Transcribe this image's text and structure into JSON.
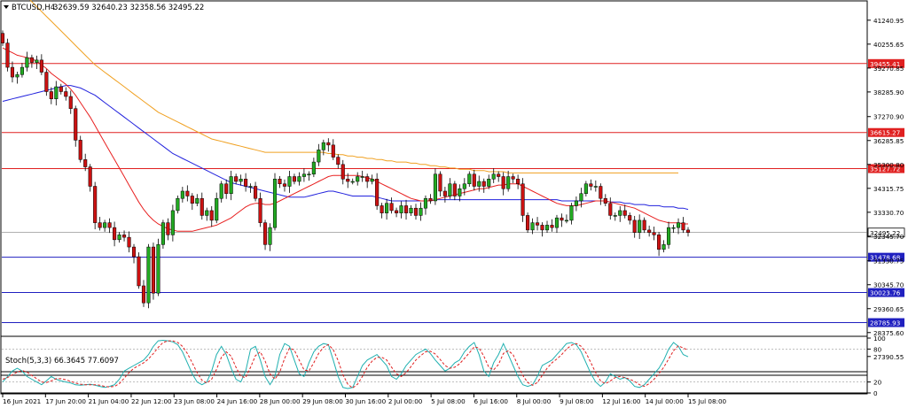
{
  "colors": {
    "bull": "#22aa22",
    "bear": "#cc1111",
    "ma_fast": "#e82020",
    "ma_mid": "#2222dd",
    "ma_slow": "#f0a020",
    "res_line": "#e02020",
    "sup_line": "#2020c0",
    "stoch_main": "#20b0b0",
    "stoch_signal": "#e02020",
    "grid": "#cccccc",
    "axis": "#000000",
    "current": "#606060"
  },
  "chart_data": [
    {
      "type": "candlestick",
      "title": "BTCUSD,H4",
      "ohlc_header": "32639.59 32640.23 32358.56 32495.22",
      "ylim": [
        26800,
        42000
      ],
      "y_ticks": [
        "41240.95",
        "40255.65",
        "39270.85",
        "38285.90",
        "37270.90",
        "36285.85",
        "35300.80",
        "34315.75",
        "33330.70",
        "32345.70",
        "31330.75",
        "30345.70",
        "29360.65",
        "28375.60",
        "27390.55"
      ],
      "x_labels": [
        "16 Jun 2021",
        "17 Jun 20:00",
        "21 Jun 04:00",
        "22 Jun 12:00",
        "23 Jun 08:00",
        "24 Jun 16:00",
        "28 Jun 00:00",
        "29 Jun 08:00",
        "30 Jun 16:00",
        "2 Jul 00:00",
        "5 Jul 08:00",
        "6 Jul 16:00",
        "8 Jul 00:00",
        "9 Jul 08:00",
        "12 Jul 16:00",
        "14 Jul 00:00",
        "15 Jul 08:00"
      ],
      "horizontal_levels": [
        {
          "label": "39455.41",
          "value": 39455.41,
          "kind": "resistance"
        },
        {
          "label": "36615.27",
          "value": 36615.27,
          "kind": "resistance"
        },
        {
          "label": "35127.72",
          "value": 35127.72,
          "kind": "resistance"
        },
        {
          "label": "31478.68",
          "value": 31478.68,
          "kind": "support"
        },
        {
          "label": "30023.76",
          "value": 30023.76,
          "kind": "support"
        },
        {
          "label": "28785.93",
          "value": 28785.93,
          "kind": "support"
        }
      ],
      "current_price": {
        "label": "32495.22",
        "value": 32495.22
      },
      "close": [
        40300,
        39300,
        38900,
        39000,
        39300,
        39700,
        39500,
        39600,
        39100,
        38300,
        38000,
        38500,
        38300,
        38100,
        37600,
        36300,
        35500,
        35200,
        34400,
        32900,
        32700,
        32900,
        32700,
        32200,
        32400,
        32300,
        31900,
        31500,
        30300,
        29600,
        31900,
        30000,
        32000,
        32900,
        32400,
        33400,
        33900,
        34200,
        34000,
        33700,
        33900,
        33200,
        33400,
        33000,
        33900,
        34500,
        34100,
        34800,
        34600,
        34700,
        34400,
        34400,
        33900,
        32900,
        32000,
        32700,
        34700,
        34500,
        34400,
        34800,
        34600,
        34800,
        34900,
        34900,
        35400,
        35900,
        36200,
        36100,
        35600,
        35300,
        34700,
        34600,
        34600,
        34800,
        34800,
        34600,
        34700,
        33600,
        33300,
        33700,
        33400,
        33300,
        33600,
        33300,
        33500,
        33200,
        33500,
        33900,
        33800,
        34900,
        34200,
        34000,
        34500,
        34000,
        34300,
        34500,
        34900,
        34400,
        34600,
        34400,
        34700,
        34900,
        34800,
        34300,
        34800,
        34700,
        34500,
        33200,
        32600,
        32900,
        32800,
        32600,
        32800,
        32700,
        33100,
        33000,
        33000,
        33600,
        33800,
        34100,
        34500,
        34400,
        34400,
        33900,
        33700,
        33200,
        33200,
        33400,
        33200,
        33000,
        32500,
        33000,
        32600,
        32500,
        32400,
        31800,
        32000,
        32700,
        32700,
        32900,
        32600,
        32500
      ],
      "ma_fast": [
        40100,
        40000,
        39900,
        39800,
        39750,
        39700,
        39650,
        39550,
        39400,
        39250,
        39050,
        38900,
        38750,
        38600,
        38400,
        38150,
        37850,
        37550,
        37250,
        36900,
        36550,
        36200,
        35850,
        35500,
        35150,
        34800,
        34450,
        34100,
        33750,
        33450,
        33200,
        33000,
        32850,
        32750,
        32650,
        32600,
        32550,
        32550,
        32550,
        32550,
        32600,
        32650,
        32700,
        32750,
        32800,
        32900,
        33000,
        33100,
        33250,
        33400,
        33550,
        33650,
        33700,
        33700,
        33650,
        33650,
        33700,
        33800,
        33900,
        34000,
        34100,
        34200,
        34300,
        34400,
        34500,
        34600,
        34700,
        34800,
        34850,
        34850,
        34850,
        34850,
        34850,
        34850,
        34800,
        34750,
        34700,
        34600,
        34500,
        34400,
        34300,
        34200,
        34100,
        34000,
        33900,
        33850,
        33800,
        33800,
        33800,
        33850,
        33900,
        33950,
        34000,
        34050,
        34100,
        34150,
        34200,
        34250,
        34300,
        34300,
        34350,
        34400,
        34450,
        34450,
        34500,
        34500,
        34500,
        34400,
        34300,
        34200,
        34100,
        34000,
        33900,
        33800,
        33700,
        33650,
        33600,
        33600,
        33600,
        33650,
        33700,
        33750,
        33800,
        33800,
        33800,
        33750,
        33700,
        33650,
        33600,
        33550,
        33500,
        33400,
        33300,
        33200,
        33100,
        33000,
        32950,
        32900,
        32900,
        32900,
        32850,
        32850
      ],
      "ma_mid": [
        37900,
        37950,
        38000,
        38050,
        38100,
        38150,
        38200,
        38250,
        38300,
        38350,
        38400,
        38450,
        38500,
        38550,
        38550,
        38500,
        38450,
        38350,
        38250,
        38150,
        38000,
        37850,
        37700,
        37550,
        37400,
        37250,
        37100,
        36950,
        36800,
        36650,
        36500,
        36350,
        36200,
        36050,
        35900,
        35750,
        35650,
        35550,
        35450,
        35350,
        35250,
        35150,
        35050,
        34950,
        34850,
        34750,
        34650,
        34550,
        34500,
        34450,
        34400,
        34350,
        34300,
        34250,
        34200,
        34150,
        34100,
        34050,
        34000,
        33950,
        33950,
        33950,
        33950,
        34000,
        34050,
        34100,
        34150,
        34200,
        34200,
        34150,
        34100,
        34050,
        34000,
        34000,
        34000,
        34000,
        34000,
        33950,
        33900,
        33850,
        33800,
        33800,
        33800,
        33800,
        33800,
        33800,
        33800,
        33800,
        33800,
        33850,
        33850,
        33850,
        33850,
        33850,
        33850,
        33850,
        33850,
        33850,
        33850,
        33850,
        33850,
        33850,
        33850,
        33850,
        33850,
        33850,
        33850,
        33850,
        33850,
        33850,
        33850,
        33850,
        33850,
        33850,
        33850,
        33800,
        33800,
        33800,
        33800,
        33800,
        33800,
        33800,
        33800,
        33800,
        33800,
        33750,
        33750,
        33750,
        33700,
        33700,
        33650,
        33650,
        33650,
        33600,
        33600,
        33600,
        33550,
        33550,
        33550,
        33500,
        33500,
        33450
      ],
      "ma_slow": [
        43200,
        43000,
        42800,
        42600,
        42400,
        42200,
        42000,
        41800,
        41600,
        41400,
        41200,
        41000,
        40800,
        40600,
        40400,
        40200,
        40000,
        39800,
        39600,
        39400,
        39250,
        39100,
        38950,
        38800,
        38650,
        38500,
        38350,
        38200,
        38050,
        37900,
        37750,
        37600,
        37450,
        37350,
        37250,
        37150,
        37050,
        36950,
        36850,
        36750,
        36650,
        36550,
        36450,
        36350,
        36300,
        36250,
        36200,
        36150,
        36100,
        36050,
        36000,
        35950,
        35900,
        35850,
        35800,
        35800,
        35800,
        35800,
        35800,
        35800,
        35800,
        35800,
        35800,
        35800,
        35800,
        35800,
        35800,
        35750,
        35750,
        35700,
        35700,
        35650,
        35650,
        35600,
        35600,
        35550,
        35550,
        35500,
        35500,
        35450,
        35450,
        35400,
        35400,
        35400,
        35350,
        35350,
        35300,
        35300,
        35250,
        35250,
        35200,
        35200,
        35150,
        35150,
        35100,
        35100,
        35100,
        35050,
        35050,
        35050,
        35000,
        35000,
        35000,
        35000,
        34950,
        34950,
        34950,
        34950,
        34950,
        34950,
        34950,
        34950,
        34950,
        34950,
        34950,
        34950,
        34950,
        34950,
        34950,
        34950,
        34950,
        34950,
        34950,
        34950,
        34950,
        34950,
        34950,
        34950,
        34950,
        34950,
        34950,
        34950,
        34950,
        34950,
        34950,
        34950,
        34950,
        34950,
        34950,
        34950
      ]
    },
    {
      "type": "line",
      "title": "Stoch(5,3,3) 66.3645 77.6097",
      "ylim": [
        0,
        100
      ],
      "y_ticks": [
        "100",
        "80",
        "20",
        "0"
      ],
      "levels": [
        80,
        20
      ],
      "series": [
        {
          "name": "main",
          "values": [
            20,
            30,
            40,
            45,
            40,
            30,
            25,
            20,
            15,
            22,
            30,
            25,
            22,
            20,
            18,
            15,
            14,
            15,
            16,
            14,
            12,
            10,
            12,
            15,
            25,
            40,
            45,
            50,
            55,
            60,
            70,
            85,
            95,
            96,
            95,
            93,
            88,
            75,
            55,
            35,
            20,
            15,
            20,
            40,
            70,
            85,
            70,
            45,
            25,
            20,
            40,
            80,
            85,
            60,
            30,
            15,
            30,
            70,
            90,
            85,
            60,
            35,
            30,
            55,
            75,
            85,
            90,
            88,
            60,
            30,
            10,
            8,
            10,
            30,
            50,
            60,
            65,
            70,
            60,
            50,
            30,
            25,
            35,
            50,
            60,
            70,
            75,
            80,
            72,
            60,
            50,
            40,
            45,
            55,
            60,
            75,
            85,
            92,
            70,
            40,
            30,
            55,
            70,
            90,
            70,
            50,
            30,
            15,
            12,
            15,
            30,
            50,
            55,
            60,
            70,
            80,
            90,
            92,
            88,
            75,
            55,
            35,
            20,
            12,
            20,
            35,
            30,
            25,
            28,
            22,
            12,
            10,
            15,
            25,
            35,
            45,
            60,
            80,
            92,
            85,
            70,
            66
          ]
        },
        {
          "name": "signal",
          "values": [
            25,
            28,
            33,
            38,
            41,
            38,
            32,
            26,
            20,
            19,
            22,
            26,
            26,
            24,
            21,
            18,
            16,
            15,
            15,
            15,
            14,
            12,
            11,
            12,
            17,
            27,
            37,
            45,
            50,
            55,
            62,
            72,
            83,
            92,
            95,
            95,
            92,
            85,
            72,
            55,
            37,
            23,
            18,
            25,
            43,
            65,
            75,
            67,
            47,
            30,
            28,
            47,
            68,
            75,
            58,
            35,
            25,
            38,
            63,
            82,
            78,
            60,
            42,
            40,
            55,
            72,
            83,
            88,
            79,
            59,
            33,
            16,
            9,
            16,
            30,
            47,
            58,
            65,
            65,
            60,
            47,
            35,
            30,
            37,
            48,
            60,
            68,
            75,
            76,
            71,
            61,
            50,
            45,
            47,
            53,
            63,
            73,
            84,
            82,
            67,
            47,
            42,
            52,
            72,
            77,
            70,
            50,
            32,
            19,
            14,
            19,
            32,
            45,
            55,
            62,
            70,
            80,
            87,
            90,
            85,
            73,
            55,
            37,
            22,
            17,
            22,
            28,
            30,
            28,
            25,
            21,
            15,
            12,
            17,
            25,
            35,
            47,
            62,
            77,
            86,
            82,
            78
          ]
        }
      ]
    }
  ]
}
